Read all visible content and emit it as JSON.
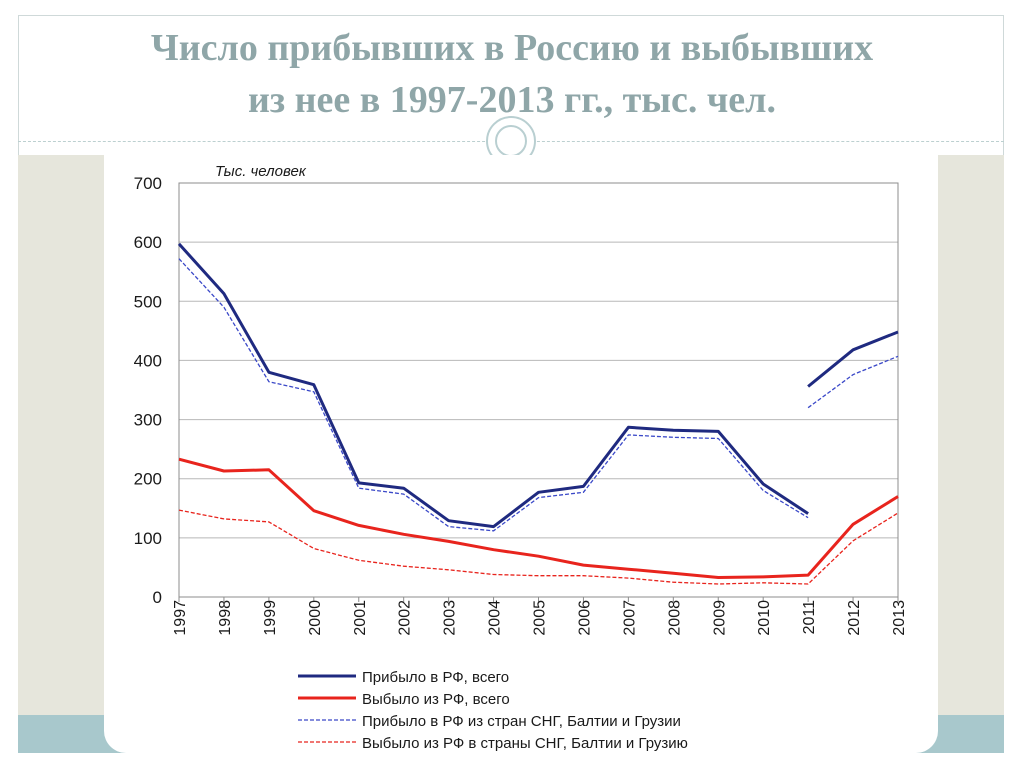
{
  "slide": {
    "title_line1": "Число прибывших в Россию и выбывших",
    "title_line2": "из нее в 1997-2013 гг., тыс. чел."
  },
  "chart_data": {
    "type": "line",
    "ylabel": "Тыс. человек",
    "ylim": [
      0,
      700
    ],
    "yticks": [
      0,
      100,
      200,
      300,
      400,
      500,
      600,
      700
    ],
    "grid": true,
    "categories": [
      "1997",
      "1998",
      "1999",
      "2000",
      "2001",
      "2002",
      "2003",
      "2004",
      "2005",
      "2006",
      "2007",
      "2008",
      "2009",
      "2010",
      "2011",
      "2012",
      "2013"
    ],
    "series": [
      {
        "name": "Прибыло в РФ, всего",
        "color": "#1f2a80",
        "style": "solid",
        "values": [
          597,
          513,
          380,
          359,
          193,
          184,
          129,
          119,
          177,
          187,
          287,
          282,
          280,
          191,
          141,
          null,
          null
        ]
      },
      {
        "name": "Прибыло в РФ, всего (с 2011 г.)",
        "color": "#1f2a80",
        "style": "solid",
        "in_legend": false,
        "values": [
          null,
          null,
          null,
          null,
          null,
          null,
          null,
          null,
          null,
          null,
          null,
          null,
          null,
          null,
          356,
          418,
          448
        ]
      },
      {
        "name": "Выбыло из РФ, всего",
        "color": "#e8241d",
        "style": "solid",
        "values": [
          233,
          213,
          215,
          146,
          121,
          106,
          94,
          80,
          69,
          54,
          47,
          40,
          33,
          34,
          37,
          123,
          170
        ]
      },
      {
        "name": "Прибыло в РФ из стран СНГ, Балтии и Грузии",
        "color": "#3a48c8",
        "style": "dashed",
        "values": [
          572,
          490,
          364,
          347,
          184,
          174,
          119,
          112,
          168,
          177,
          274,
          270,
          268,
          180,
          134,
          null,
          null
        ]
      },
      {
        "name": "Прибыло в РФ из стран СНГ, Балтии и Грузии (с 2011 г.)",
        "color": "#3a48c8",
        "style": "dashed",
        "in_legend": false,
        "values": [
          null,
          null,
          null,
          null,
          null,
          null,
          null,
          null,
          null,
          null,
          null,
          null,
          null,
          null,
          320,
          376,
          407
        ]
      },
      {
        "name": "Выбыло из РФ в страны СНГ, Балтии и Грузию",
        "color": "#e8241d",
        "style": "dashed",
        "values": [
          147,
          132,
          127,
          82,
          62,
          52,
          46,
          38,
          36,
          36,
          32,
          25,
          22,
          24,
          22,
          95,
          142
        ]
      }
    ]
  }
}
